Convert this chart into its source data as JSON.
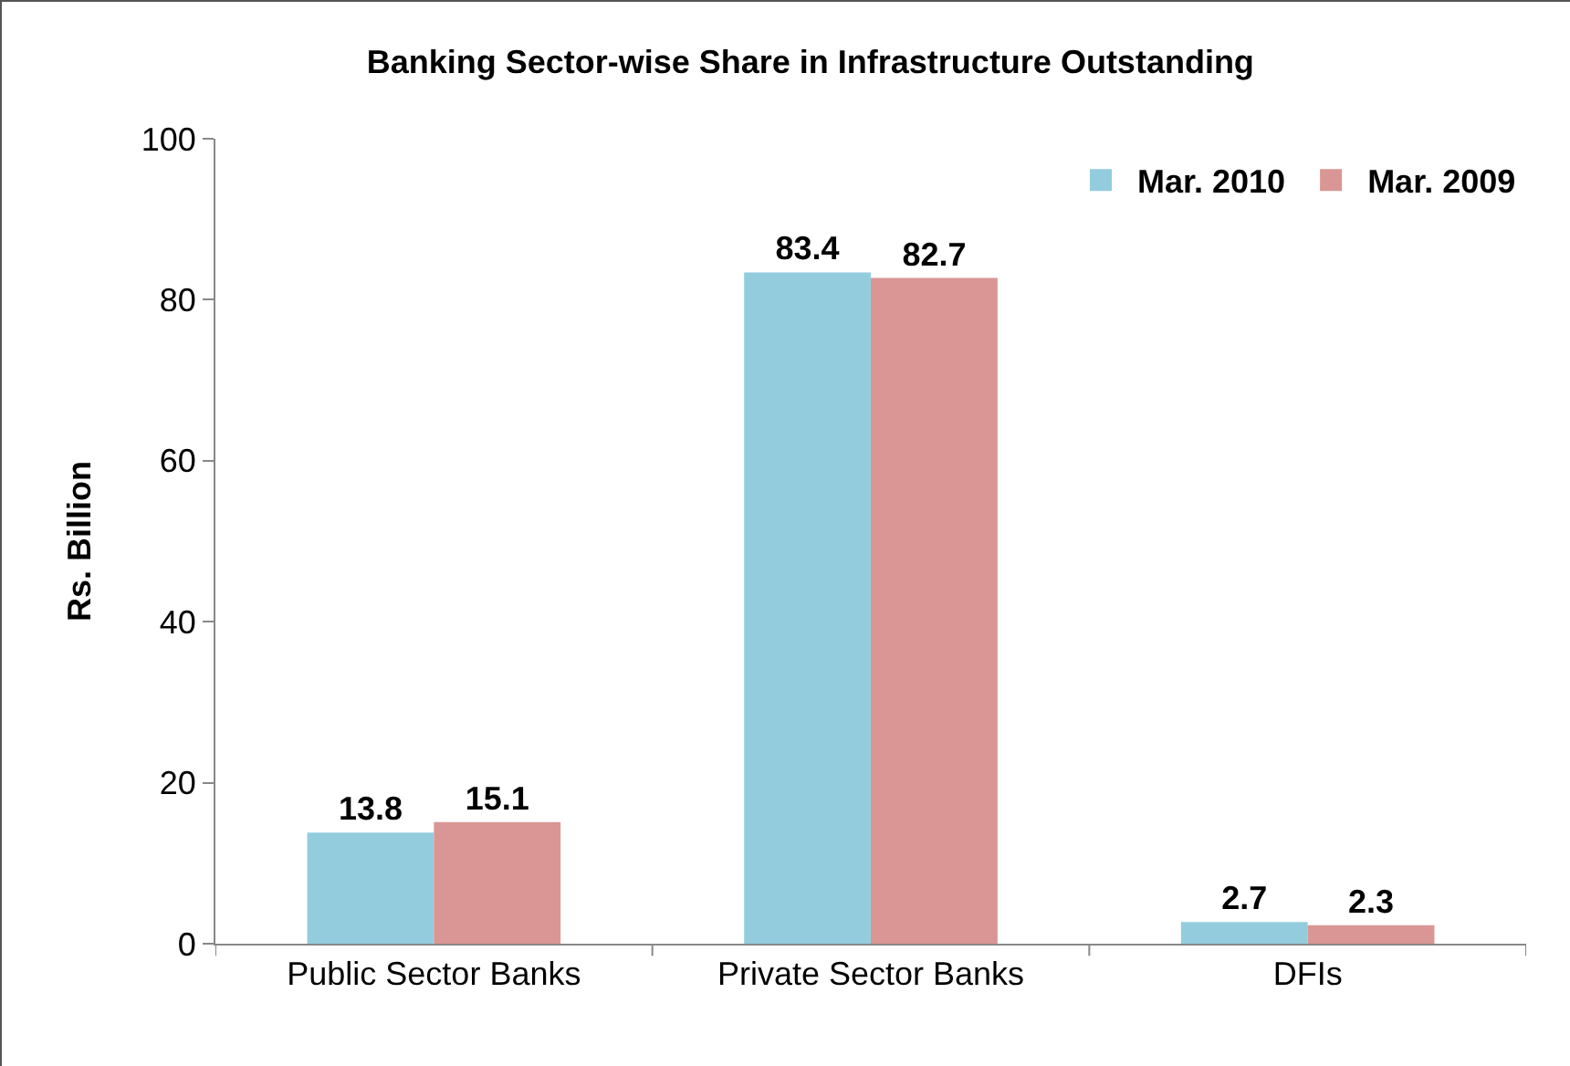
{
  "chart_data": {
    "type": "bar",
    "title": "Banking Sector-wise Share in Infrastructure Outstanding",
    "ylabel": "Rs. Billion",
    "categories": [
      "Public Sector Banks",
      "Private Sector Banks",
      "DFIs"
    ],
    "series": [
      {
        "name": "Mar. 2010",
        "color": "#93cddd",
        "values": [
          13.8,
          83.4,
          2.7
        ]
      },
      {
        "name": "Mar. 2009",
        "color": "#d99694",
        "values": [
          15.1,
          82.7,
          2.3
        ]
      }
    ],
    "ylim": [
      0,
      100
    ],
    "yticks": [
      0,
      20,
      40,
      60,
      80,
      100
    ],
    "grid": false,
    "legend": "top right",
    "data_labels": true
  }
}
